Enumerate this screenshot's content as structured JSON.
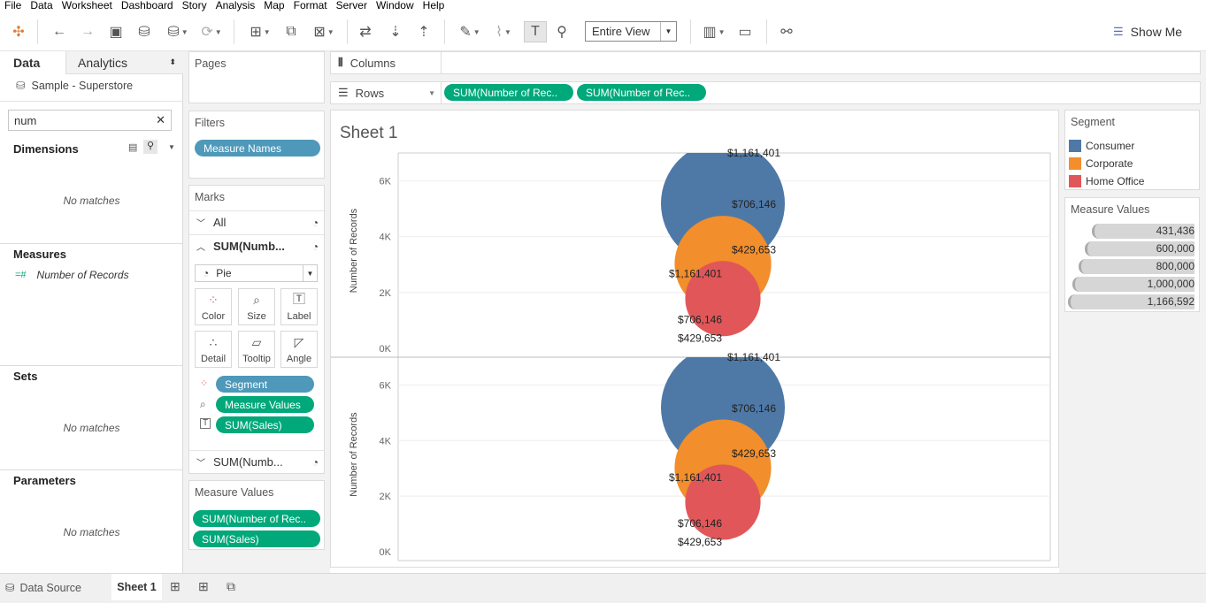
{
  "menu": [
    "File",
    "Data",
    "Worksheet",
    "Dashboard",
    "Story",
    "Analysis",
    "Map",
    "Format",
    "Server",
    "Window",
    "Help"
  ],
  "toolbar": {
    "fit": "Entire View",
    "show_me": "Show Me"
  },
  "left_pane": {
    "tabs": {
      "data": "Data",
      "analytics": "Analytics"
    },
    "datasource": "Sample - Superstore",
    "search_value": "num",
    "dimensions": {
      "title": "Dimensions",
      "empty": "No matches"
    },
    "measures": {
      "title": "Measures",
      "items": [
        "Number of Records"
      ]
    },
    "sets": {
      "title": "Sets",
      "empty": "No matches"
    },
    "parameters": {
      "title": "Parameters",
      "empty": "No matches"
    }
  },
  "pages": {
    "title": "Pages"
  },
  "filters": {
    "title": "Filters",
    "pills": [
      "Measure Names"
    ]
  },
  "marks": {
    "title": "Marks",
    "rows": [
      "All",
      "SUM(Numb...",
      "SUM(Numb..."
    ],
    "mark_type": "Pie",
    "buttons": [
      "Color",
      "Size",
      "Label",
      "Detail",
      "Tooltip",
      "Angle"
    ],
    "fields": [
      "Segment",
      "Measure Values",
      "SUM(Sales)"
    ]
  },
  "measure_values_card": {
    "title": "Measure Values",
    "pills": [
      "SUM(Number of Rec..",
      "SUM(Sales)"
    ]
  },
  "shelves": {
    "columns_label": "Columns",
    "rows_label": "Rows",
    "rows_pills": [
      "SUM(Number of Rec..",
      "SUM(Number of Rec.."
    ]
  },
  "sheet": {
    "title": "Sheet 1"
  },
  "legends": {
    "segment": {
      "title": "Segment",
      "items": [
        {
          "label": "Consumer",
          "color": "#4e79a7"
        },
        {
          "label": "Corporate",
          "color": "#f28e2b"
        },
        {
          "label": "Home Office",
          "color": "#e15759"
        }
      ]
    },
    "size": {
      "title": "Measure Values",
      "items": [
        "431,436",
        "600,000",
        "800,000",
        "1,000,000",
        "1,166,592"
      ]
    }
  },
  "tabs_bottom": {
    "data_source": "Data Source",
    "sheet": "Sheet 1"
  },
  "chart_data": [
    {
      "type": "scatter",
      "ylabel": "Number of Records",
      "ylim": [
        0,
        7000
      ],
      "yticks": [
        "0K",
        "2K",
        "4K",
        "6K"
      ],
      "series": [
        {
          "name": "Consumer",
          "y": 5191,
          "size": 1161401,
          "color": "#4e79a7",
          "labels": [
            "$1,161,401",
            "$706,146"
          ]
        },
        {
          "name": "Corporate",
          "y": 3020,
          "size": 706146,
          "color": "#f28e2b",
          "labels": [
            "$429,653",
            "$1,161,401"
          ]
        },
        {
          "name": "Home Office",
          "y": 1783,
          "size": 429653,
          "color": "#e15759",
          "labels": [
            "$706,146",
            "$429,653"
          ]
        }
      ]
    },
    {
      "type": "scatter",
      "ylabel": "Number of Records",
      "ylim": [
        0,
        7000
      ],
      "yticks": [
        "0K",
        "2K",
        "4K",
        "6K"
      ],
      "series": [
        {
          "name": "Consumer",
          "y": 5191,
          "size": 1161401,
          "color": "#4e79a7",
          "labels": [
            "$1,161,401",
            "$706,146"
          ]
        },
        {
          "name": "Corporate",
          "y": 3020,
          "size": 706146,
          "color": "#f28e2b",
          "labels": [
            "$429,653",
            "$1,161,401"
          ]
        },
        {
          "name": "Home Office",
          "y": 1783,
          "size": 429653,
          "color": "#e15759",
          "labels": [
            "$706,146",
            "$429,653"
          ]
        }
      ]
    }
  ]
}
